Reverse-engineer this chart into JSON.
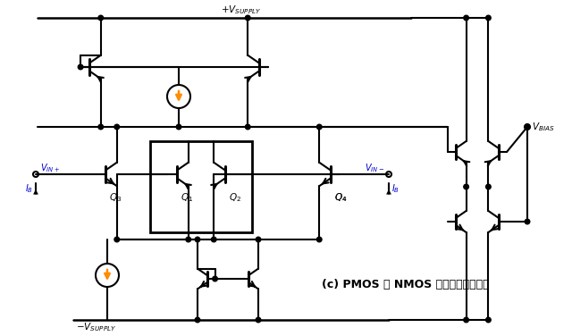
{
  "title": "(c) PMOS 和 NMOS 组合的差分输入级",
  "bg_color": "#ffffff",
  "line_color": "#000000",
  "arrow_color": "#ff8c00",
  "text_blue": "#0000cd",
  "text_black": "#000000",
  "figsize": [
    6.4,
    3.76
  ],
  "dpi": 100
}
